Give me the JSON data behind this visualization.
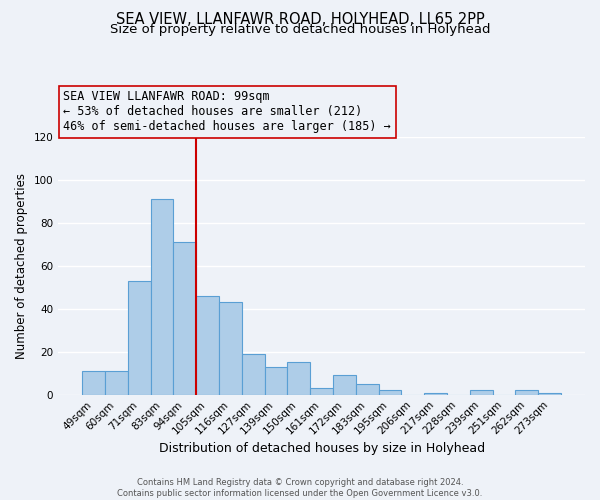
{
  "title": "SEA VIEW, LLANFAWR ROAD, HOLYHEAD, LL65 2PP",
  "subtitle": "Size of property relative to detached houses in Holyhead",
  "xlabel": "Distribution of detached houses by size in Holyhead",
  "ylabel": "Number of detached properties",
  "bar_labels": [
    "49sqm",
    "60sqm",
    "71sqm",
    "83sqm",
    "94sqm",
    "105sqm",
    "116sqm",
    "127sqm",
    "139sqm",
    "150sqm",
    "161sqm",
    "172sqm",
    "183sqm",
    "195sqm",
    "206sqm",
    "217sqm",
    "228sqm",
    "239sqm",
    "251sqm",
    "262sqm",
    "273sqm"
  ],
  "bar_values": [
    11,
    11,
    53,
    91,
    71,
    46,
    43,
    19,
    13,
    15,
    3,
    9,
    5,
    2,
    0,
    1,
    0,
    2,
    0,
    2,
    1
  ],
  "bar_color": "#aecde8",
  "bar_edge_color": "#5a9fd4",
  "ylim": [
    0,
    120
  ],
  "yticks": [
    0,
    20,
    40,
    60,
    80,
    100,
    120
  ],
  "vline_x": 4.5,
  "vline_color": "#cc0000",
  "annotation_title": "SEA VIEW LLANFAWR ROAD: 99sqm",
  "annotation_line1": "← 53% of detached houses are smaller (212)",
  "annotation_line2": "46% of semi-detached houses are larger (185) →",
  "footer_line1": "Contains HM Land Registry data © Crown copyright and database right 2024.",
  "footer_line2": "Contains public sector information licensed under the Open Government Licence v3.0.",
  "background_color": "#eef2f8",
  "grid_color": "#ffffff",
  "title_fontsize": 10.5,
  "subtitle_fontsize": 9.5
}
